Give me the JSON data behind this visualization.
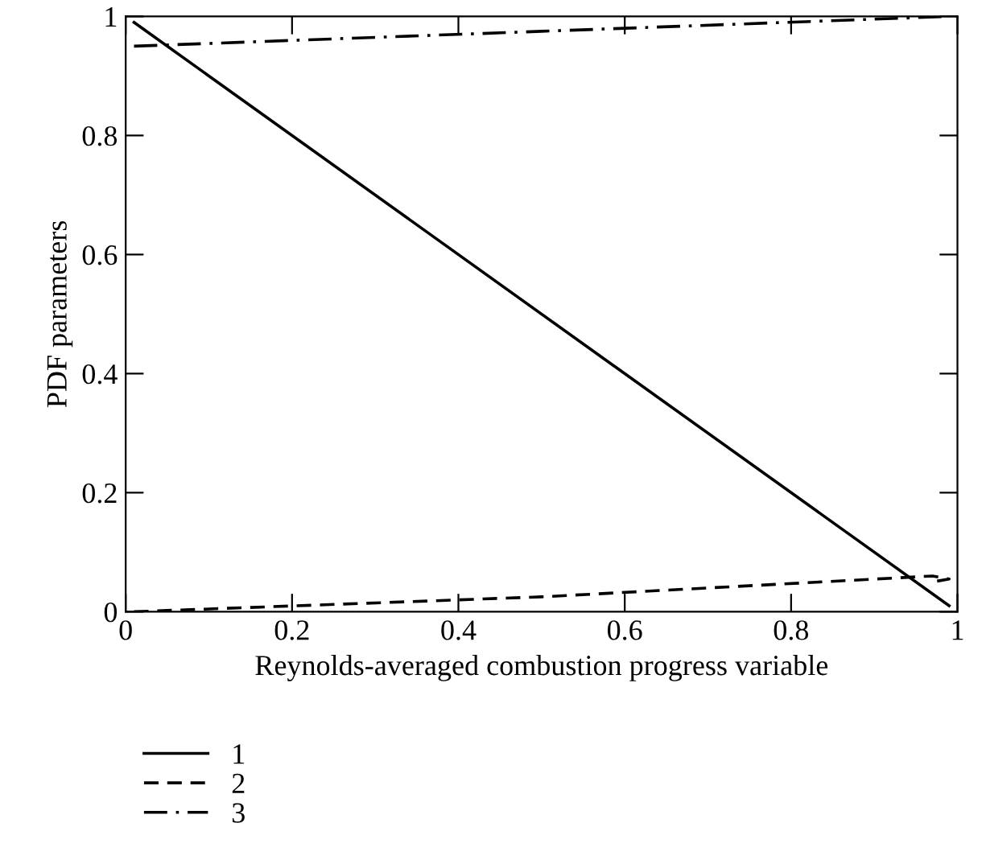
{
  "chart_data": {
    "type": "line",
    "xlabel": "Reynolds-averaged combustion progress variable",
    "ylabel": "PDF parameters",
    "xlim": [
      0,
      1
    ],
    "ylim": [
      0,
      1
    ],
    "xticks": [
      0,
      0.2,
      0.4,
      0.6,
      0.8,
      1
    ],
    "yticks": [
      0,
      0.2,
      0.4,
      0.6,
      0.8,
      1
    ],
    "grid": false,
    "legend": "bottom",
    "series": [
      {
        "name": "1",
        "color": "#000000",
        "line_style": "solid",
        "x": [
          0.01,
          0.99
        ],
        "values": [
          0.99,
          0.01
        ]
      },
      {
        "name": "2",
        "color": "#000000",
        "line_style": "dashed",
        "x": [
          0.01,
          0.5,
          0.97,
          0.99,
          0.97
        ],
        "values": [
          0,
          0.025,
          0.06,
          0.055,
          0.05
        ]
      },
      {
        "name": "3",
        "color": "#000000",
        "line_style": "dashdot",
        "x": [
          0.01,
          0.5,
          0.99
        ],
        "values": [
          0.95,
          0.975,
          1.0
        ]
      }
    ]
  }
}
